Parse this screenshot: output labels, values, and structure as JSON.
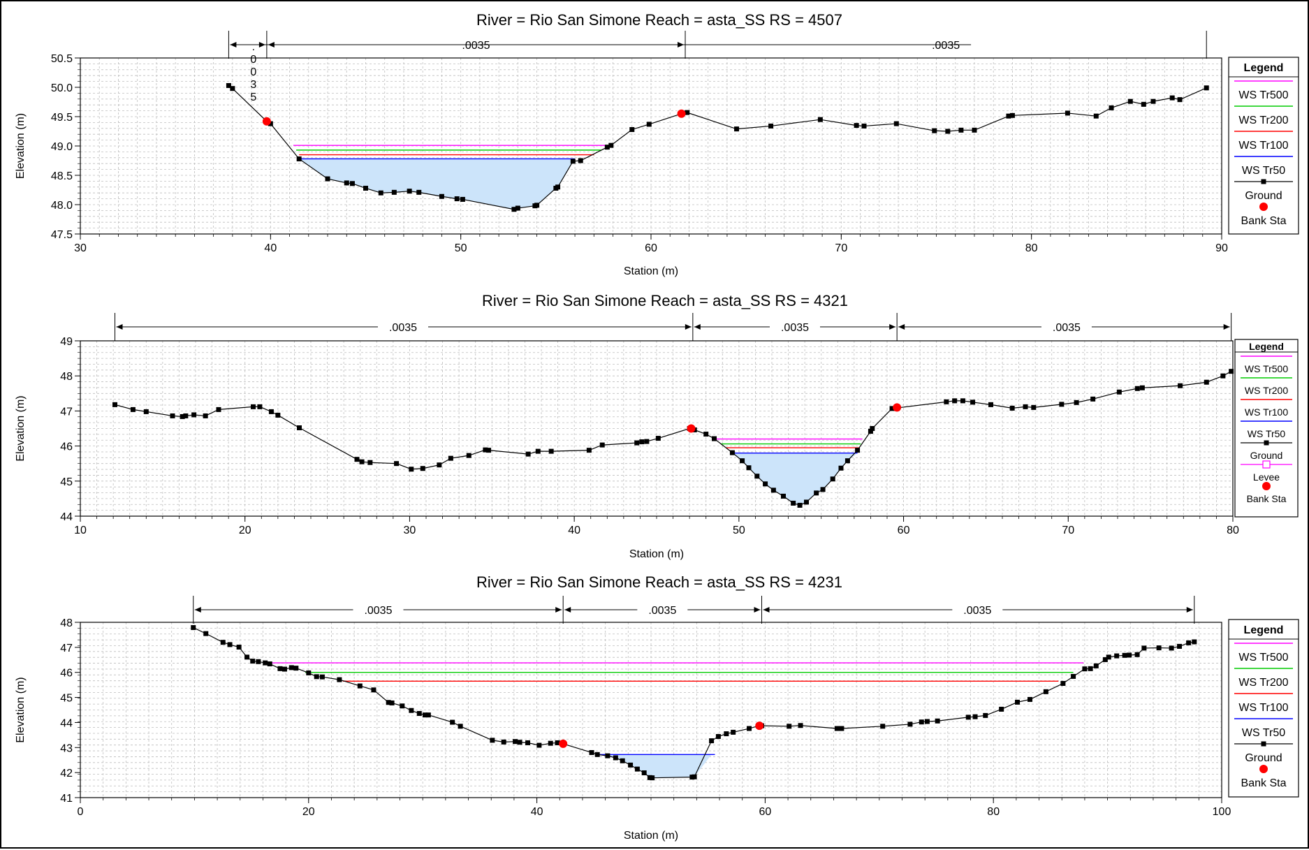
{
  "colors": {
    "ws_tr500": "#ff00ff",
    "ws_tr200": "#00cc00",
    "ws_tr100": "#ff0000",
    "ws_tr50": "#0000ff",
    "ground": "#000000",
    "bank_sta": "#ff0000",
    "levee": "#ff00ff",
    "water_fill": "#cce4fa",
    "grid": "#bdbdbd"
  },
  "chart_data": [
    {
      "type": "line",
      "title": "River = Rio San Simone   Reach = asta_SS      RS = 4507",
      "xlabel": "Station (m)",
      "ylabel": "Elevation (m)",
      "xlim": [
        30,
        90
      ],
      "ylim": [
        47.5,
        50.5
      ],
      "xticks": [
        30,
        40,
        50,
        60,
        70,
        80,
        90
      ],
      "yticks": [
        47.5,
        48.0,
        48.5,
        49.0,
        49.5,
        50.0,
        50.5
      ],
      "ytick_labels": [
        "47.5",
        "48.0",
        "48.5",
        "49.0",
        "49.5",
        "50.0",
        "50.5"
      ],
      "legend": {
        "title": "Legend",
        "position": "right",
        "items": [
          {
            "label": "WS Tr500",
            "kind": "line",
            "color_key": "ws_tr500"
          },
          {
            "label": "WS Tr200",
            "kind": "line",
            "color_key": "ws_tr200"
          },
          {
            "label": "WS Tr100",
            "kind": "line",
            "color_key": "ws_tr100"
          },
          {
            "label": "WS Tr50",
            "kind": "line",
            "color_key": "ws_tr50"
          },
          {
            "label": "Ground",
            "kind": "ground"
          },
          {
            "label": "Bank Sta",
            "kind": "bank"
          }
        ]
      },
      "n_dims": {
        "markers": [
          37.8,
          39.8,
          61.8,
          89.2
        ],
        "labels": [
          {
            "text": ".0035",
            "x": 50.8
          },
          {
            "text": ".0035",
            "x": 75.5
          }
        ],
        "vertical_label": {
          "chars": [
            ".",
            "0",
            "0",
            "3",
            "5"
          ],
          "x": 39.1
        }
      },
      "ground": {
        "x": [
          37.8,
          38.0,
          39.8,
          40.0,
          41.5,
          43.0,
          44.0,
          44.3,
          45.0,
          45.8,
          46.5,
          47.3,
          47.8,
          49.0,
          49.8,
          50.1,
          52.8,
          53.0,
          53.9,
          54.0,
          55.0,
          55.1,
          55.9,
          56.3,
          57.7,
          57.9,
          59.0,
          59.9,
          61.6,
          61.9,
          64.5,
          66.3,
          68.9,
          70.8,
          71.2,
          72.9,
          74.9,
          75.6,
          76.3,
          77.0,
          78.8,
          79.0,
          81.9,
          83.4,
          84.2,
          85.2,
          85.9,
          86.4,
          87.4,
          87.8,
          89.2
        ],
        "y": [
          50.03,
          49.98,
          49.42,
          49.38,
          48.78,
          48.44,
          48.37,
          48.36,
          48.28,
          48.2,
          48.21,
          48.23,
          48.21,
          48.14,
          48.1,
          48.09,
          47.92,
          47.94,
          47.98,
          47.99,
          48.28,
          48.3,
          48.74,
          48.75,
          48.98,
          49.01,
          49.28,
          49.37,
          49.55,
          49.57,
          49.29,
          49.34,
          49.45,
          49.35,
          49.34,
          49.38,
          49.26,
          49.25,
          49.27,
          49.27,
          49.51,
          49.52,
          49.56,
          49.51,
          49.65,
          49.76,
          49.71,
          49.76,
          49.82,
          49.79,
          49.99
        ]
      },
      "bank_stations": [
        {
          "x": 39.8,
          "y": 49.42
        },
        {
          "x": 61.6,
          "y": 49.55
        }
      ],
      "water_surfaces": [
        {
          "name": "WS Tr500",
          "color_key": "ws_tr500",
          "elev": 49.01,
          "x1": 41.2,
          "x2": 57.8
        },
        {
          "name": "WS Tr200",
          "color_key": "ws_tr200",
          "elev": 48.93,
          "x1": 41.35,
          "x2": 57.4
        },
        {
          "name": "WS Tr100",
          "color_key": "ws_tr100",
          "elev": 48.85,
          "x1": 41.5,
          "x2": 57.0
        },
        {
          "name": "WS Tr50",
          "color_key": "ws_tr50",
          "elev": 48.78,
          "x1": 41.5,
          "x2": 56.0,
          "filled": true
        }
      ]
    },
    {
      "type": "line",
      "title": "River = Rio San Simone   Reach = asta_SS      RS = 4321",
      "xlabel": "Station (m)",
      "ylabel": "Elevation (m)",
      "xlim": [
        10,
        80
      ],
      "ylim": [
        44,
        49
      ],
      "xticks": [
        10,
        20,
        30,
        40,
        50,
        60,
        70,
        80
      ],
      "yticks": [
        44,
        45,
        46,
        47,
        48,
        49
      ],
      "ytick_labels": [
        "44",
        "45",
        "46",
        "47",
        "48",
        "49"
      ],
      "legend": {
        "title": "Legend",
        "position": "right",
        "items": [
          {
            "label": "WS Tr500",
            "kind": "line",
            "color_key": "ws_tr500"
          },
          {
            "label": "WS Tr200",
            "kind": "line",
            "color_key": "ws_tr200"
          },
          {
            "label": "WS Tr100",
            "kind": "line",
            "color_key": "ws_tr100"
          },
          {
            "label": "WS Tr50",
            "kind": "line",
            "color_key": "ws_tr50"
          },
          {
            "label": "Ground",
            "kind": "ground"
          },
          {
            "label": "Levee",
            "kind": "levee"
          },
          {
            "label": "Bank Sta",
            "kind": "bank"
          }
        ]
      },
      "n_dims": {
        "markers": [
          12.1,
          47.2,
          59.6,
          79.9
        ],
        "labels": [
          {
            "text": ".0035",
            "x": 29.6
          },
          {
            "text": ".0035",
            "x": 53.4
          },
          {
            "text": ".0035",
            "x": 69.9
          }
        ]
      },
      "ground": {
        "x": [
          12.1,
          13.2,
          14.0,
          15.6,
          16.2,
          16.4,
          16.9,
          17.6,
          18.4,
          20.5,
          20.9,
          21.6,
          22.0,
          23.3,
          26.8,
          27.1,
          27.6,
          29.2,
          30.1,
          30.8,
          31.8,
          32.5,
          33.6,
          34.6,
          34.8,
          37.2,
          37.8,
          38.6,
          40.9,
          41.7,
          43.8,
          44.1,
          44.4,
          45.1,
          47.0,
          47.3,
          48.0,
          48.5,
          49.6,
          50.2,
          50.6,
          51.1,
          51.6,
          52.1,
          52.7,
          53.3,
          53.7,
          54.1,
          54.7,
          55.1,
          55.7,
          56.2,
          56.6,
          57.2,
          58.0,
          58.1,
          59.3,
          62.6,
          63.1,
          63.6,
          64.2,
          65.3,
          66.6,
          67.4,
          67.9,
          69.6,
          70.5,
          71.5,
          73.1,
          74.2,
          74.5,
          76.8,
          78.4,
          79.4,
          79.9
        ],
        "y": [
          47.18,
          47.04,
          46.98,
          46.86,
          46.84,
          46.86,
          46.89,
          46.86,
          47.04,
          47.12,
          47.12,
          46.98,
          46.88,
          46.52,
          45.62,
          45.55,
          45.53,
          45.5,
          45.34,
          45.36,
          45.46,
          45.65,
          45.73,
          45.89,
          45.88,
          45.77,
          45.85,
          45.85,
          45.88,
          46.03,
          46.09,
          46.12,
          46.13,
          46.22,
          46.5,
          46.46,
          46.34,
          46.21,
          45.81,
          45.58,
          45.38,
          45.14,
          44.92,
          44.74,
          44.57,
          44.37,
          44.31,
          44.4,
          44.66,
          44.76,
          45.06,
          45.37,
          45.58,
          45.88,
          46.42,
          46.5,
          47.07,
          47.26,
          47.29,
          47.29,
          47.25,
          47.18,
          47.08,
          47.12,
          47.1,
          47.19,
          47.24,
          47.34,
          47.54,
          47.64,
          47.66,
          47.72,
          47.82,
          48.0,
          48.13
        ]
      },
      "bank_stations": [
        {
          "x": 47.1,
          "y": 46.5
        },
        {
          "x": 59.6,
          "y": 47.1
        }
      ],
      "water_surfaces": [
        {
          "name": "WS Tr500",
          "color_key": "ws_tr500",
          "elev": 46.2,
          "x1": 48.5,
          "x2": 57.5
        },
        {
          "name": "WS Tr200",
          "color_key": "ws_tr200",
          "elev": 46.06,
          "x1": 48.9,
          "x2": 57.4
        },
        {
          "name": "WS Tr100",
          "color_key": "ws_tr100",
          "elev": 45.95,
          "x1": 49.2,
          "x2": 57.3
        },
        {
          "name": "WS Tr50",
          "color_key": "ws_tr50",
          "elev": 45.8,
          "x1": 49.6,
          "x2": 57.2,
          "filled": true
        }
      ]
    },
    {
      "type": "line",
      "title": "River = Rio San Simone   Reach = asta_SS      RS = 4231",
      "xlabel": "Station (m)",
      "ylabel": "Elevation (m)",
      "xlim": [
        0,
        100
      ],
      "ylim": [
        41,
        48
      ],
      "xticks": [
        0,
        20,
        40,
        60,
        80,
        100
      ],
      "yticks": [
        41,
        42,
        43,
        44,
        45,
        46,
        47,
        48
      ],
      "ytick_labels": [
        "41",
        "42",
        "43",
        "44",
        "45",
        "46",
        "47",
        "48"
      ],
      "legend": {
        "title": "Legend",
        "position": "right",
        "items": [
          {
            "label": "WS Tr500",
            "kind": "line",
            "color_key": "ws_tr500"
          },
          {
            "label": "WS Tr200",
            "kind": "line",
            "color_key": "ws_tr200"
          },
          {
            "label": "WS Tr100",
            "kind": "line",
            "color_key": "ws_tr100"
          },
          {
            "label": "WS Tr50",
            "kind": "line",
            "color_key": "ws_tr50"
          },
          {
            "label": "Ground",
            "kind": "ground"
          },
          {
            "label": "Bank Sta",
            "kind": "bank"
          }
        ]
      },
      "n_dims": {
        "markers": [
          9.9,
          42.3,
          59.7,
          97.6
        ],
        "labels": [
          {
            "text": ".0035",
            "x": 26.1
          },
          {
            "text": ".0035",
            "x": 51.0
          },
          {
            "text": ".0035",
            "x": 78.6
          }
        ]
      },
      "ground": {
        "x": [
          9.9,
          11.0,
          12.5,
          13.1,
          13.9,
          14.6,
          15.1,
          15.6,
          16.2,
          16.6,
          17.5,
          17.9,
          18.5,
          18.9,
          20.0,
          20.7,
          21.2,
          22.7,
          24.5,
          25.7,
          27.0,
          27.3,
          28.2,
          29.0,
          29.7,
          30.2,
          30.5,
          32.6,
          33.3,
          36.1,
          37.1,
          38.1,
          38.5,
          39.2,
          40.2,
          41.2,
          41.8,
          42.3,
          44.8,
          45.3,
          46.2,
          46.9,
          47.5,
          48.2,
          48.8,
          49.4,
          49.9,
          50.1,
          53.6,
          53.8,
          55.3,
          55.9,
          56.6,
          57.2,
          58.6,
          59.4,
          59.7,
          62.1,
          63.1,
          66.3,
          66.7,
          70.3,
          72.7,
          73.7,
          74.2,
          75.1,
          77.8,
          78.4,
          79.3,
          80.7,
          82.1,
          83.2,
          84.6,
          86.1,
          87.0,
          88.0,
          88.5,
          89.0,
          89.8,
          90.1,
          90.8,
          91.5,
          91.9,
          92.6,
          93.2,
          94.5,
          95.6,
          96.3,
          97.1,
          97.6
        ],
        "y": [
          47.79,
          47.55,
          47.2,
          47.11,
          47.01,
          46.61,
          46.45,
          46.43,
          46.38,
          46.34,
          46.15,
          46.13,
          46.19,
          46.17,
          45.98,
          45.83,
          45.82,
          45.71,
          45.46,
          45.3,
          44.8,
          44.78,
          44.66,
          44.48,
          44.36,
          44.3,
          44.3,
          44.01,
          43.85,
          43.29,
          43.22,
          43.24,
          43.21,
          43.19,
          43.09,
          43.17,
          43.19,
          43.15,
          42.8,
          42.72,
          42.67,
          42.59,
          42.47,
          42.3,
          42.14,
          41.99,
          41.8,
          41.79,
          41.82,
          41.83,
          43.27,
          43.44,
          43.55,
          43.61,
          43.76,
          43.86,
          43.87,
          43.85,
          43.88,
          43.76,
          43.76,
          43.85,
          43.93,
          44.02,
          44.04,
          44.06,
          44.21,
          44.23,
          44.28,
          44.53,
          44.81,
          44.92,
          45.23,
          45.56,
          45.84,
          46.14,
          46.15,
          46.26,
          46.51,
          46.61,
          46.66,
          46.68,
          46.69,
          46.71,
          46.97,
          46.98,
          46.97,
          47.04,
          47.18,
          47.22
        ]
      },
      "bank_stations": [
        {
          "x": 42.3,
          "y": 43.15
        },
        {
          "x": 59.5,
          "y": 43.87
        }
      ],
      "water_surfaces": [
        {
          "name": "WS Tr500",
          "color_key": "ws_tr500",
          "elev": 46.38,
          "x1": 16.2,
          "x2": 87.9
        },
        {
          "name": "WS Tr200",
          "color_key": "ws_tr200",
          "elev": 46.0,
          "x1": 19.7,
          "x2": 87.0
        },
        {
          "name": "WS Tr100",
          "color_key": "ws_tr100",
          "elev": 45.65,
          "x1": 23.0,
          "x2": 85.7
        },
        {
          "name": "WS Tr50",
          "color_key": "ws_tr50",
          "elev": 42.72,
          "x1": 45.3,
          "x2": 55.6,
          "filled": true
        }
      ]
    }
  ]
}
